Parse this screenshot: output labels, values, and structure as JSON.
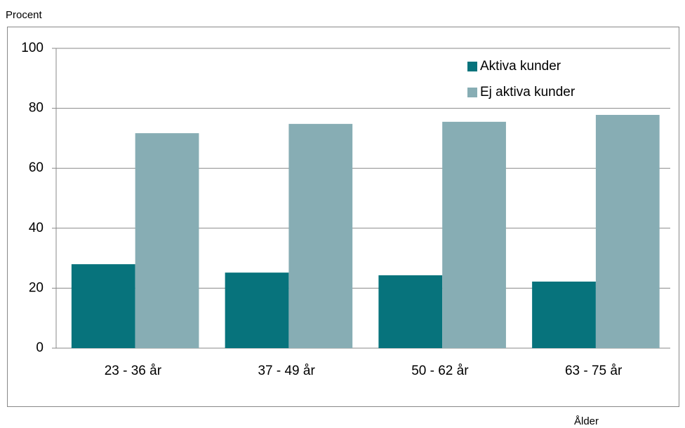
{
  "chart_data": {
    "type": "bar",
    "y_label": "Procent",
    "x_label": "Ålder",
    "categories": [
      "23 - 36 år",
      "37 - 49 år",
      "50 - 62 år",
      "63 - 75 år"
    ],
    "series": [
      {
        "name": "Aktiva kunder",
        "color": "#07737c",
        "values": [
          28.0,
          25.2,
          24.3,
          22.2
        ]
      },
      {
        "name": "Ej aktiva kunder",
        "color": "#87adb4",
        "values": [
          71.7,
          74.8,
          75.5,
          77.8
        ]
      }
    ],
    "ylim": [
      0,
      100
    ],
    "yticks": [
      0,
      20,
      40,
      60,
      80,
      100
    ],
    "grid": true,
    "legend": "upper right"
  }
}
